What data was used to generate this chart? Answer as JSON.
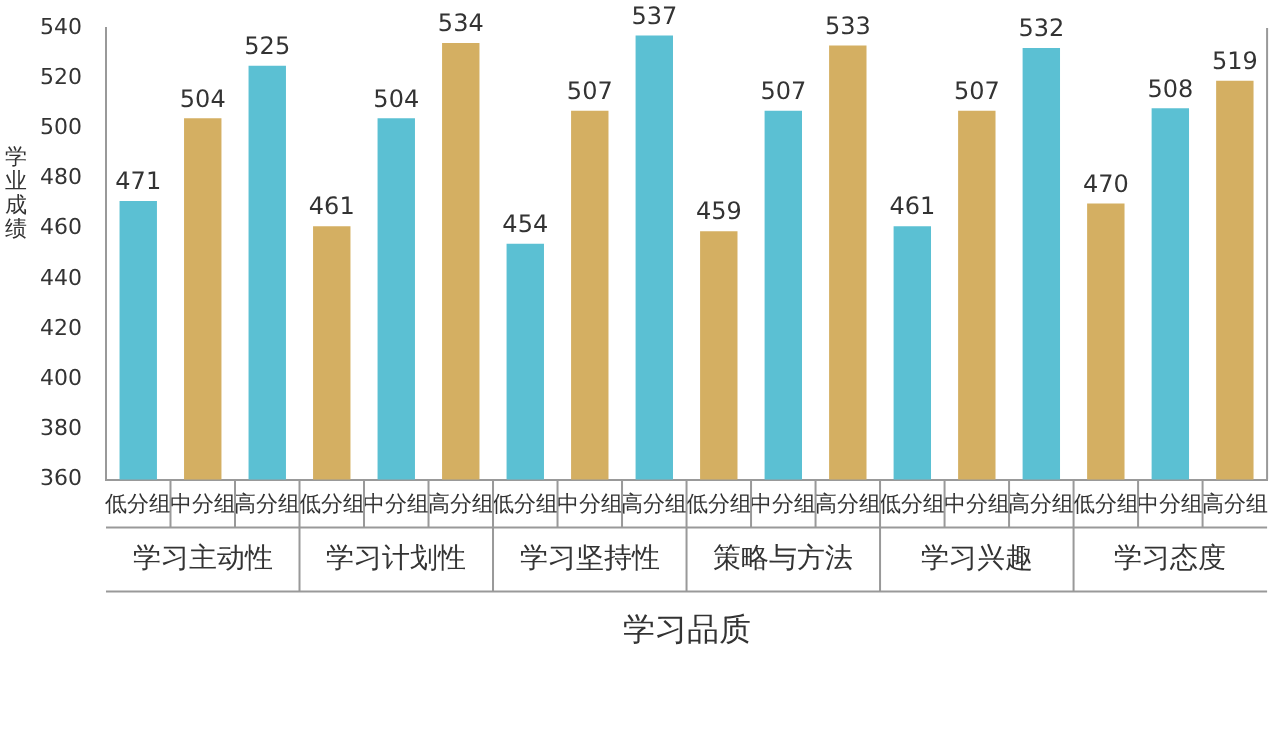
{
  "chart_data": {
    "type": "bar",
    "xlabel": "学习品质",
    "ylabel": "学业成绩",
    "categories": [
      "低分组",
      "中分组",
      "高分组",
      "低分组",
      "中分组",
      "高分组",
      "低分组",
      "中分组",
      "高分组",
      "低分组",
      "中分组",
      "高分组",
      "低分组",
      "中分组",
      "高分组",
      "低分组",
      "中分组",
      "高分组"
    ],
    "values": [
      471,
      504,
      525,
      461,
      504,
      534,
      454,
      507,
      537,
      459,
      507,
      533,
      461,
      507,
      532,
      470,
      508,
      519
    ],
    "colors": [
      "#5bc0d3",
      "#d4af62",
      "#5bc0d3",
      "#d4af62",
      "#5bc0d3",
      "#d4af62",
      "#5bc0d3",
      "#d4af62",
      "#5bc0d3",
      "#d4af62",
      "#5bc0d3",
      "#d4af62",
      "#5bc0d3",
      "#d4af62",
      "#5bc0d3",
      "#d4af62",
      "#5bc0d3",
      "#d4af62"
    ],
    "annotations": [
      "学习主动性",
      "学习计划性",
      "学习坚持性",
      "策略与方法",
      "学习兴趣",
      "学习态度"
    ],
    "ylim": [
      360,
      540
    ],
    "yticks": [
      360,
      380,
      400,
      420,
      440,
      460,
      480,
      500,
      520,
      540
    ],
    "data_labels": true,
    "grid": false,
    "legend": false
  }
}
